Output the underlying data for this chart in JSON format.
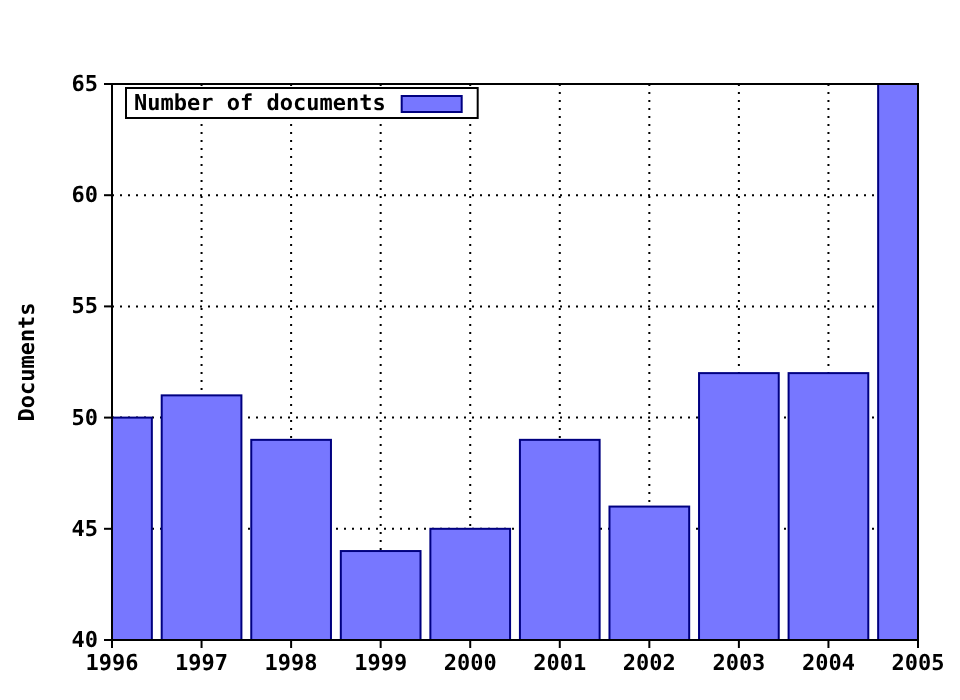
{
  "chart_data": {
    "type": "bar",
    "ylabel": "Documents",
    "categories": [
      "1996",
      "1997",
      "1998",
      "1999",
      "2000",
      "2001",
      "2002",
      "2003",
      "2004",
      "2005"
    ],
    "series": [
      {
        "name": "Number of documents",
        "color": "#7777ff",
        "values": [
          50,
          51,
          49,
          44,
          45,
          49,
          46,
          52,
          52,
          65
        ]
      }
    ],
    "ylim": [
      40,
      65
    ],
    "yticks": [
      40,
      45,
      50,
      55,
      60,
      65
    ],
    "grid": true,
    "legend": "top left"
  }
}
